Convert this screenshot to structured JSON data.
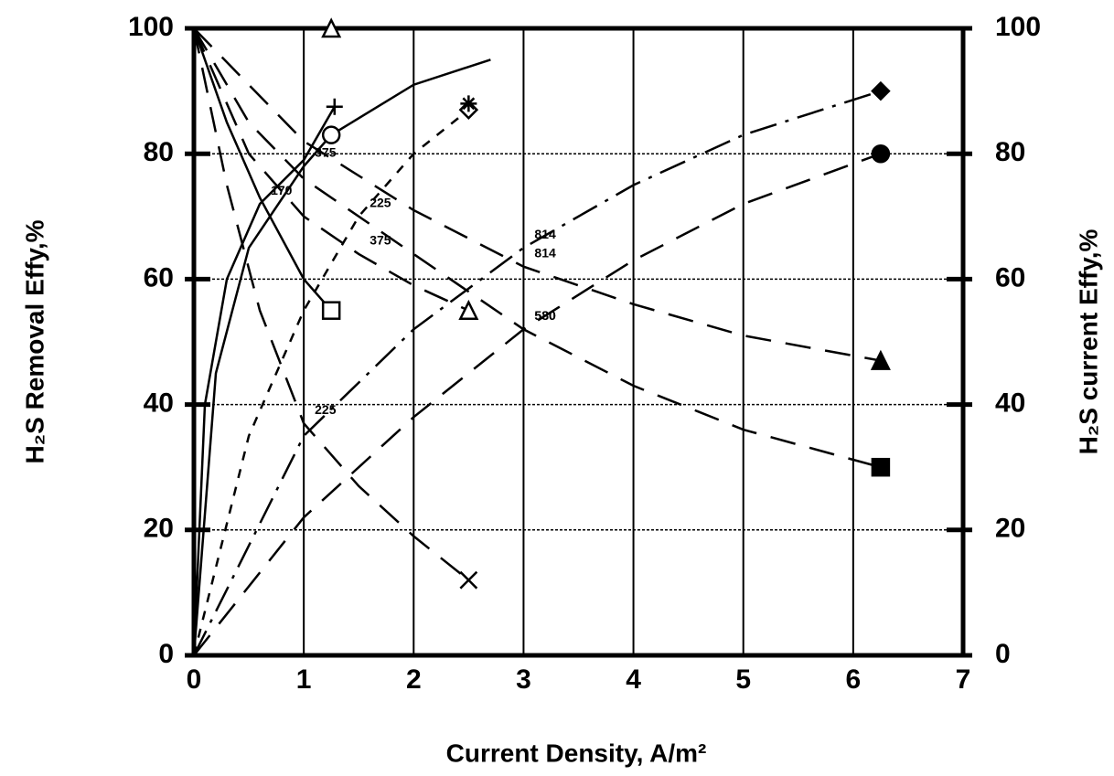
{
  "chart_data": {
    "type": "line",
    "x_label": "Current Density,  A/m²",
    "y_label": "H₂S Removal Effy,%",
    "y2_label": "H₂S current Effy,%",
    "xlim": [
      0,
      7
    ],
    "xticks": [
      0,
      1,
      2,
      3,
      4,
      5,
      6,
      7
    ],
    "ylim": [
      0,
      100
    ],
    "yticks": [
      0,
      20,
      40,
      60,
      80,
      100
    ],
    "y2lim": [
      0,
      100
    ],
    "y2ticks": [
      0,
      20,
      40,
      60,
      80,
      100
    ],
    "grid": true,
    "color": "#000000",
    "series": [
      {
        "name": "170",
        "dash": "solid",
        "x": [
          0,
          0.1,
          0.3,
          0.6,
          1,
          1.28
        ],
        "values": [
          0,
          40,
          60,
          72,
          79,
          87.5
        ]
      },
      {
        "name": "375",
        "dash": "solid",
        "x": [
          0,
          0.2,
          0.5,
          1,
          1.25,
          2,
          2.7
        ],
        "values": [
          0,
          45,
          65,
          78,
          83,
          91,
          95
        ]
      },
      {
        "name": "225",
        "dash": "short",
        "x": [
          0,
          0.5,
          1,
          1.5,
          2,
          2.5
        ],
        "values": [
          0,
          35,
          55,
          70,
          80,
          87
        ]
      },
      {
        "name": "814",
        "dash": "dashdot",
        "x": [
          0,
          1,
          2,
          3,
          4,
          5,
          6.25
        ],
        "values": [
          0,
          35,
          52,
          65,
          75,
          83,
          90
        ]
      },
      {
        "name": "580",
        "dash": "long",
        "x": [
          0,
          1,
          2,
          3,
          4,
          5,
          6.25
        ],
        "values": [
          0,
          22,
          38,
          52,
          63,
          72,
          80
        ]
      },
      {
        "dash": "solid",
        "axis": "y2",
        "x": [
          0,
          0.3,
          0.6,
          1,
          1.25
        ],
        "values": [
          100,
          85,
          73,
          60,
          55
        ]
      },
      {
        "name": "375",
        "dash": "long",
        "axis": "y2",
        "x": [
          0,
          0.5,
          1,
          1.5,
          2,
          2.5
        ],
        "values": [
          100,
          80,
          70,
          64,
          59,
          55
        ]
      },
      {
        "name": "225",
        "dash": "long",
        "axis": "y2",
        "x": [
          0,
          0.3,
          0.6,
          1,
          1.5,
          2,
          2.5
        ],
        "values": [
          100,
          75,
          55,
          37,
          27,
          19,
          12
        ]
      },
      {
        "name": "814",
        "dash": "long",
        "axis": "y2",
        "x": [
          0,
          1,
          2,
          3,
          4,
          5,
          6.25
        ],
        "values": [
          100,
          82,
          71,
          62,
          56,
          51,
          47
        ]
      },
      {
        "name": "580",
        "dash": "long",
        "axis": "y2",
        "x": [
          0,
          0.5,
          1,
          2,
          3,
          4,
          5,
          6.25
        ],
        "values": [
          100,
          85,
          76,
          64,
          52,
          43,
          36,
          30
        ]
      }
    ],
    "points": {
      "x": [
        1.25,
        1.28,
        1.25,
        1.25,
        2.5,
        2.5,
        2.5,
        2.5,
        6.25,
        6.25,
        6.25,
        6.25
      ],
      "values": [
        100,
        87.5,
        83,
        55,
        55,
        12,
        87,
        88,
        90,
        80,
        47,
        30
      ],
      "shapes": [
        "triangle-open",
        "plus",
        "circle-open",
        "square-open",
        "triangle-open",
        "cross",
        "diamond-open",
        "star",
        "diamond",
        "circle",
        "triangle",
        "square"
      ]
    }
  }
}
